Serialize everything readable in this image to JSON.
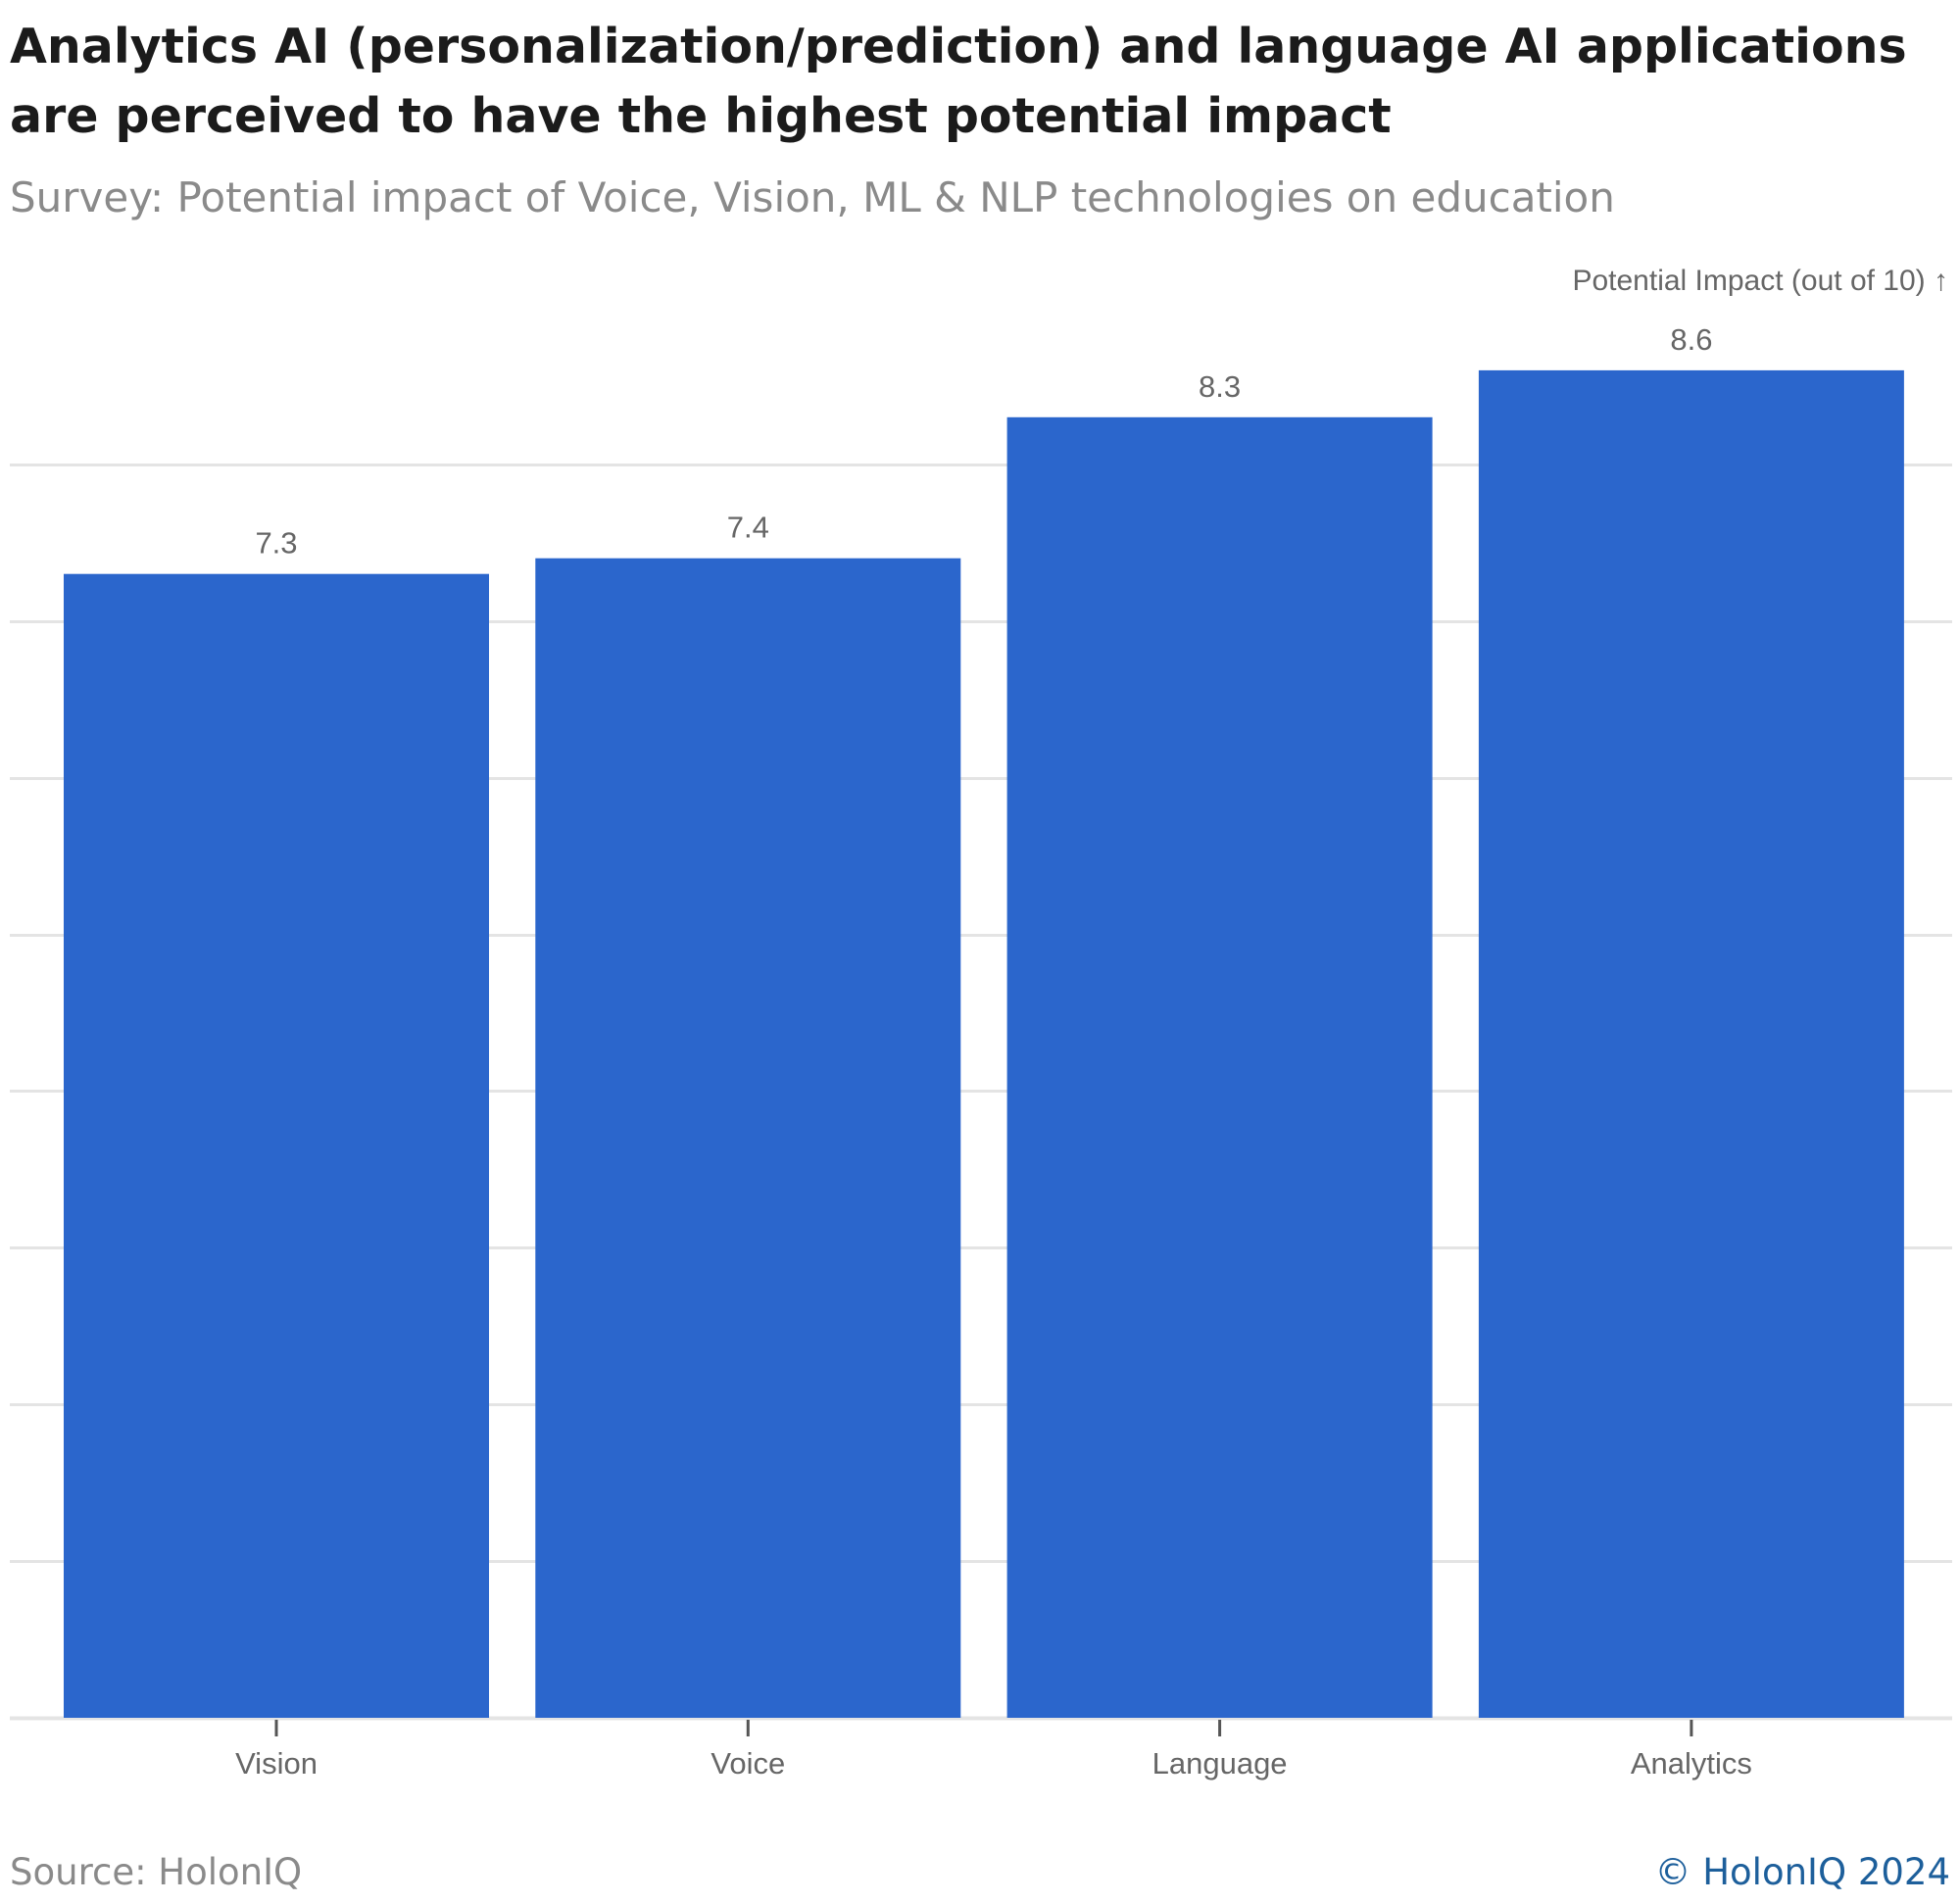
{
  "title": "Analytics AI (personalization/prediction) and language AI applications are perceived to have the highest potential impact",
  "subtitle": "Survey: Potential impact of Voice, Vision, ML & NLP technologies on education",
  "source": "Source: HolonIQ",
  "copyright": "© HolonIQ 2024",
  "colors": {
    "bar": "#2b66cc",
    "grid": "#e4e4e4",
    "axis_text": "#666666"
  },
  "chart_data": {
    "type": "bar",
    "categories": [
      "Vision",
      "Voice",
      "Language",
      "Analytics"
    ],
    "values": [
      7.3,
      7.4,
      8.3,
      8.6
    ],
    "data_labels": [
      "7.3",
      "7.4",
      "8.3",
      "8.6"
    ],
    "ylabel": "Potential Impact (out of 10) ↑",
    "xlabel": "",
    "ylim": [
      0,
      8
    ],
    "grid": true,
    "legend": "none"
  }
}
